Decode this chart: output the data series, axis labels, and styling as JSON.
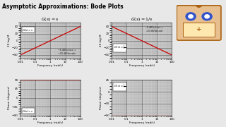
{
  "title": "Asymptotic Approximations: Bode Plots",
  "title_fontsize": 5.5,
  "freq_range": [
    0.01,
    100
  ],
  "mag_ylim": [
    -50,
    50
  ],
  "phase_ylim_s": [
    -90,
    90
  ],
  "phase_ylim_inv": [
    -90,
    45
  ],
  "mag_yticks": [
    -40,
    -20,
    0,
    20,
    40
  ],
  "phase_yticks_s": [
    -90,
    -45,
    0,
    45,
    90
  ],
  "phase_yticks_inv": [
    -90,
    -45,
    0,
    45
  ],
  "line_color": "#cc0000",
  "grid_color_major": "#555555",
  "grid_color_minor": "#999999",
  "bg_color": "#c8c8c8",
  "fig_color": "#e8e8e8",
  "annotation_color": "#222222",
  "xlabel": "Frequency (rad/s)",
  "ylabel_mag": "20 log M",
  "ylabel_phase": "Phase (degrees)",
  "freq_ticks": [
    0.01,
    0.1,
    1,
    10,
    100
  ],
  "freq_tick_labels": [
    "0.01",
    "0.1",
    "1",
    "10",
    "100"
  ],
  "robot_head_color": "#e8c090",
  "robot_border_color": "#aa6010",
  "robot_eye_color": "#3355cc",
  "robot_screen_color": "#ffe8b0"
}
